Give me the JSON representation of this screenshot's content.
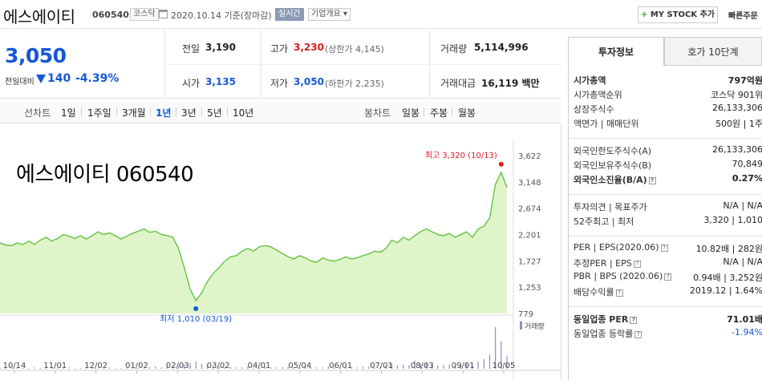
{
  "header": {
    "stock_name": "에스에이티",
    "stock_code": "060540",
    "market_tag": "코스닥",
    "date_text": "2020.10.14  기준(장마감)",
    "realtime_tag": "실시간",
    "company_tag": "기업개요 ▾",
    "mystock_label": "MY STOCK 추가",
    "quick_order": "빠른주문"
  },
  "price": {
    "current": "3,050",
    "change_label": "전일대비",
    "change_value": "140",
    "change_pct": "-4.39%"
  },
  "summary": {
    "prev_label": "전일",
    "prev_value": "3,190",
    "high_label": "고가",
    "high_value": "3,230",
    "high_sub": "(상한가 4,145)",
    "volume_label": "거래량",
    "volume_value": "5,114,996",
    "open_label": "시가",
    "open_value": "3,135",
    "low_label": "저가",
    "low_value": "3,050",
    "low_sub": "(하한가 2,235)",
    "amount_label": "거래대금",
    "amount_value": "16,119 백만"
  },
  "period_bar": {
    "line_label": "선차트",
    "periods": [
      "1일",
      "1주일",
      "3개월",
      "1년",
      "3년",
      "5년",
      "10년"
    ],
    "active_index": 3,
    "candle_label": "봉차트",
    "candles": [
      "일봉",
      "주봉",
      "월봉"
    ]
  },
  "chart_data": {
    "type": "area",
    "title": "에스에이티 060540",
    "x_ticks": [
      "10/14",
      "11/01",
      "12/02",
      "01/02",
      "02/03",
      "03/02",
      "04/01",
      "05/04",
      "06/01",
      "07/01",
      "08/03",
      "09/01",
      "10/05"
    ],
    "y_ticks": [
      3622,
      3148,
      2674,
      2201,
      1727,
      1253,
      779
    ],
    "ylim": [
      779,
      3622
    ],
    "high_label": "최고 3,320 (10/13)",
    "low_label": "최저 1,010 (03/19)",
    "volume_legend": "거래량",
    "series": [
      {
        "name": "가격",
        "values": [
          2050,
          2010,
          2000,
          2050,
          2020,
          2080,
          2020,
          2100,
          2150,
          2080,
          2130,
          2200,
          2170,
          2130,
          2180,
          2120,
          2180,
          2250,
          2200,
          2230,
          2180,
          2120,
          2170,
          2220,
          2260,
          2300,
          2240,
          2260,
          2200,
          2180,
          2150,
          1950,
          1600,
          1220,
          1010,
          1150,
          1350,
          1500,
          1600,
          1720,
          1800,
          1820,
          1900,
          1950,
          1900,
          1980,
          2000,
          1980,
          1920,
          1860,
          1800,
          1760,
          1820,
          1780,
          1720,
          1700,
          1780,
          1740,
          1720,
          1750,
          1800,
          1760,
          1780,
          1820,
          1850,
          1900,
          1880,
          1950,
          2100,
          2050,
          2150,
          2100,
          2180,
          2250,
          2300,
          2250,
          2200,
          2180,
          2220,
          2150,
          2200,
          2250,
          2150,
          2300,
          2350,
          2500,
          3100,
          3320,
          3050
        ]
      }
    ],
    "volume_values": [
      2,
      1,
      1,
      2,
      1,
      1,
      2,
      1,
      1,
      2,
      1,
      1,
      2,
      1,
      1,
      1,
      2,
      1,
      1,
      2,
      1,
      1,
      1,
      2,
      1,
      1,
      2,
      3,
      2,
      3,
      5,
      4,
      6,
      8,
      10,
      7,
      5,
      4,
      3,
      2,
      3,
      2,
      2,
      3,
      2,
      2,
      3,
      2,
      2,
      2,
      3,
      2,
      2,
      3,
      2,
      2,
      2,
      3,
      2,
      2,
      3,
      2,
      2,
      3,
      3,
      2,
      3,
      4,
      8,
      5,
      6,
      5,
      12,
      7,
      9,
      6,
      5,
      5,
      6,
      5,
      6,
      8,
      5,
      10,
      14,
      20,
      60,
      40,
      18
    ]
  },
  "panel": {
    "tab_invest": "투자정보",
    "tab_hoga": "호가 10단계",
    "rows": [
      {
        "k": "시가총액",
        "v": "797억원",
        "bold": true
      },
      {
        "k": "시가총액순위",
        "v": "코스닥 901위"
      },
      {
        "k": "상장주식수",
        "v": "26,133,306"
      },
      {
        "k": "액면가 | 매매단위",
        "v": "500원 | 1주"
      },
      {
        "k": "외국인한도주식수(A)",
        "v": "26,133,306"
      },
      {
        "k": "외국인보유주식수(B)",
        "v": "70,849"
      },
      {
        "k": "외국인소진율(B/A)",
        "v": "0.27%",
        "bold": true,
        "q": true
      },
      {
        "k": "투자의견 | 목표주가",
        "v": "N/A | N/A"
      },
      {
        "k": "52주최고 | 최저",
        "v": "3,320 | 1,010"
      },
      {
        "k": "PER | EPS(2020.06)",
        "v": "10.82배 | 282원",
        "q": true
      },
      {
        "k": "추정PER | EPS",
        "v": "N/A | N/A",
        "q": true
      },
      {
        "k": "PBR | BPS (2020.06)",
        "v": "0.94배 | 3,252원",
        "q": true
      },
      {
        "k": "배당수익률",
        "v": "2019.12 | 1.64%",
        "q": true
      },
      {
        "k": "동일업종 PER",
        "v": "71.01배",
        "bold": true,
        "q": true
      },
      {
        "k": "동일업종 등락률",
        "v": "-1.94%",
        "q": true,
        "blue": true
      }
    ]
  }
}
